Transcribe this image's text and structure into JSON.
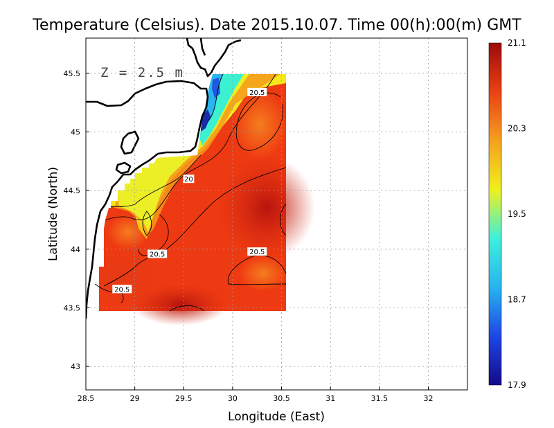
{
  "chart_data": {
    "type": "heatmap",
    "title": "Temperature (Celsius). Date 2015.10.07. Time 00(h):00(m) GMT",
    "xlabel": "Longitude (East)",
    "ylabel": "Latitude (North)",
    "annotation": "Z = 2.5 m",
    "xlim": [
      28.5,
      32.4
    ],
    "ylim": [
      42.8,
      45.8
    ],
    "x_ticks": [
      "28.5",
      "29",
      "29.5",
      "30",
      "30.5",
      "31",
      "31.5",
      "32"
    ],
    "y_ticks": [
      "43",
      "43.5",
      "44",
      "44.5",
      "45",
      "45.5"
    ],
    "grid": true,
    "colorbar": {
      "min": 17.9,
      "max": 21.1,
      "tick_labels": [
        "21.1",
        "20.3",
        "19.5",
        "18.7",
        "17.9"
      ],
      "colors": [
        "#140a8c",
        "#1e46e6",
        "#28b4f0",
        "#3cf0dc",
        "#f0f01e",
        "#f5a01e",
        "#eb4114",
        "#9b0a0a"
      ]
    },
    "contour_labels": [
      {
        "text": "20.5",
        "lon": 30.25,
        "lat": 45.34
      },
      {
        "text": "20",
        "lon": 29.55,
        "lat": 44.6
      },
      {
        "text": "20.5",
        "lon": 29.23,
        "lat": 43.96
      },
      {
        "text": "20.5",
        "lon": 30.25,
        "lat": 43.98
      },
      {
        "text": "20.5",
        "lon": 28.87,
        "lat": 43.66
      }
    ],
    "values_summary": {
      "offshore_range": [
        20.5,
        21.0
      ],
      "nearshore_north_min": 18.0,
      "domain_lon": [
        28.6,
        30.55
      ],
      "domain_lat": [
        43.48,
        45.5
      ]
    }
  }
}
